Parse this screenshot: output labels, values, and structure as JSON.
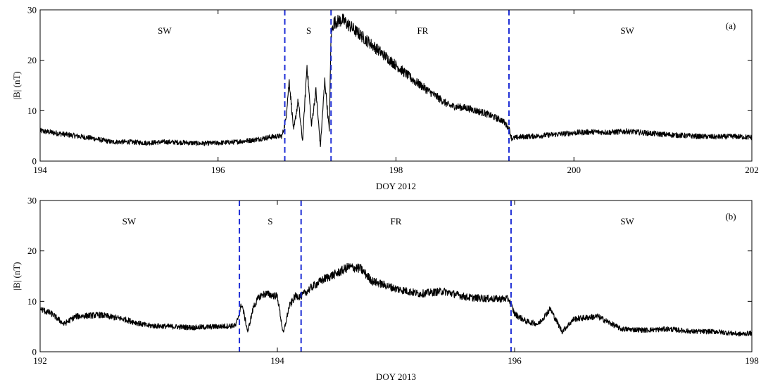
{
  "chart_data": [
    {
      "type": "line",
      "panel_label": "(a)",
      "xlabel": "DOY 2012",
      "ylabel": "|B| (nT)",
      "xlim": [
        194,
        202
      ],
      "ylim": [
        0,
        30
      ],
      "xticks": [
        194,
        196,
        198,
        200,
        202
      ],
      "yticks": [
        0,
        10,
        20,
        30
      ],
      "grid": false,
      "boundaries": [
        196.75,
        197.27,
        199.27
      ],
      "boundary_color": "#1f2fd6",
      "regions": [
        {
          "label": "SW",
          "x": 195.4
        },
        {
          "label": "S",
          "x": 197.02
        },
        {
          "label": "FR",
          "x": 198.3
        },
        {
          "label": "SW",
          "x": 200.6
        }
      ],
      "series": [
        {
          "line_color": "#000000",
          "x": [
            194.0,
            194.2,
            194.4,
            194.6,
            194.8,
            195.0,
            195.2,
            195.4,
            195.6,
            195.8,
            196.0,
            196.2,
            196.4,
            196.6,
            196.72,
            196.76,
            196.8,
            196.85,
            196.9,
            196.95,
            197.0,
            197.05,
            197.1,
            197.15,
            197.2,
            197.25,
            197.27,
            197.3,
            197.4,
            197.6,
            197.8,
            198.0,
            198.2,
            198.4,
            198.6,
            198.8,
            199.0,
            199.2,
            199.27,
            199.3,
            199.4,
            199.6,
            199.8,
            200.0,
            200.2,
            200.4,
            200.6,
            200.8,
            201.0,
            201.2,
            201.4,
            201.6,
            201.8,
            202.0
          ],
          "y": [
            6.0,
            5.5,
            5.0,
            4.5,
            3.8,
            3.8,
            3.6,
            3.8,
            3.7,
            3.5,
            3.6,
            3.8,
            4.2,
            4.8,
            5.0,
            8.0,
            16.0,
            6.0,
            12.0,
            4.0,
            19.0,
            7.0,
            14.0,
            3.0,
            16.0,
            6.0,
            25.0,
            27.5,
            28.0,
            25.0,
            22.0,
            19.0,
            16.0,
            13.5,
            11.0,
            10.5,
            9.5,
            8.0,
            6.5,
            4.5,
            4.8,
            5.0,
            5.3,
            5.6,
            5.8,
            5.7,
            5.9,
            5.6,
            5.3,
            5.1,
            4.9,
            4.8,
            4.9,
            4.7
          ]
        }
      ]
    },
    {
      "type": "line",
      "panel_label": "(b)",
      "xlabel": "DOY 2013",
      "ylabel": "|B| (nT)",
      "xlim": [
        192,
        198
      ],
      "ylim": [
        0,
        30
      ],
      "xticks": [
        192,
        194,
        196,
        198
      ],
      "yticks": [
        0,
        10,
        20,
        30
      ],
      "grid": false,
      "boundaries": [
        193.68,
        194.2,
        195.97
      ],
      "boundary_color": "#1f2fd6",
      "regions": [
        {
          "label": "SW",
          "x": 192.75
        },
        {
          "label": "S",
          "x": 193.94
        },
        {
          "label": "FR",
          "x": 195.0
        },
        {
          "label": "SW",
          "x": 196.95
        }
      ],
      "series": [
        {
          "line_color": "#000000",
          "x": [
            192.0,
            192.1,
            192.2,
            192.3,
            192.5,
            192.7,
            192.9,
            193.1,
            193.3,
            193.5,
            193.65,
            193.7,
            193.75,
            193.8,
            193.85,
            193.9,
            194.0,
            194.05,
            194.1,
            194.15,
            194.2,
            194.3,
            194.4,
            194.5,
            194.6,
            194.7,
            194.8,
            195.0,
            195.2,
            195.4,
            195.6,
            195.8,
            195.95,
            196.0,
            196.1,
            196.2,
            196.3,
            196.4,
            196.5,
            196.7,
            196.9,
            197.1,
            197.3,
            197.5,
            197.7,
            197.9,
            198.0
          ],
          "y": [
            8.5,
            7.5,
            5.5,
            7.0,
            7.3,
            6.5,
            5.2,
            5.0,
            4.8,
            5.0,
            5.2,
            9.5,
            4.0,
            9.0,
            11.0,
            11.5,
            11.0,
            3.5,
            9.0,
            11.0,
            11.0,
            13.0,
            14.5,
            15.5,
            16.8,
            16.5,
            14.0,
            12.5,
            11.5,
            12.0,
            10.8,
            10.5,
            10.5,
            7.5,
            6.0,
            5.5,
            8.5,
            4.0,
            6.5,
            7.0,
            4.5,
            4.3,
            4.5,
            4.0,
            4.0,
            3.5,
            3.7
          ]
        }
      ]
    }
  ]
}
